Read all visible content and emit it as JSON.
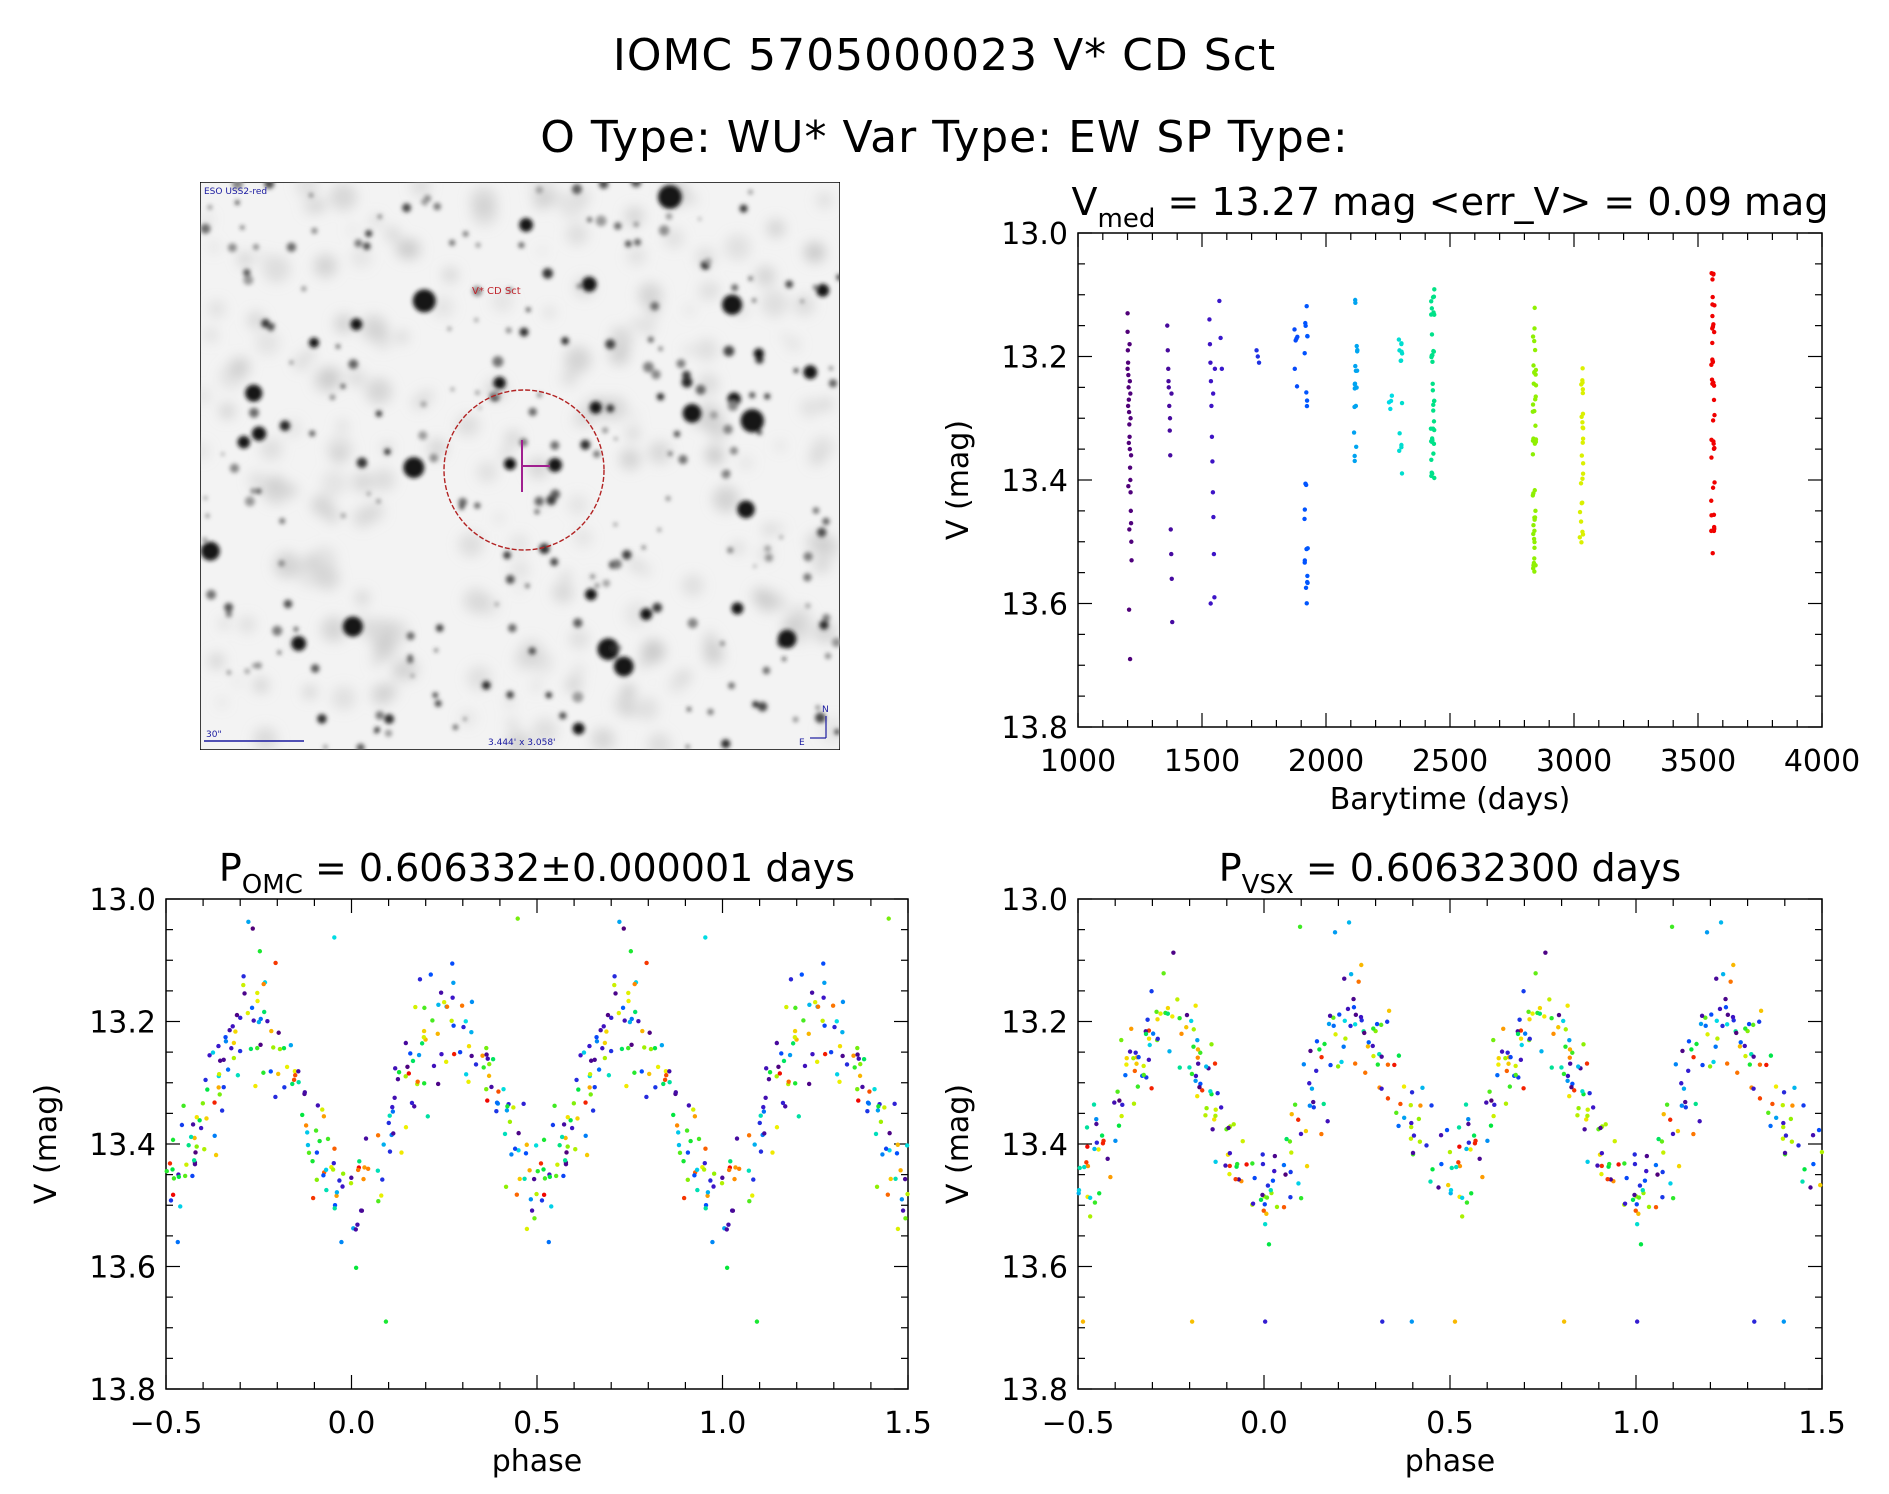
{
  "figure": {
    "title_line1": "IOMC 5705000023   V* CD Sct",
    "title_line2": "O Type: WU*  Var Type: EW  SP Type:"
  },
  "sky_image": {
    "survey_label": "ESO USS2-red",
    "target_label": "V* CD Sct",
    "scale_label": "30\"",
    "fov_label": "3.444' x 3.058'",
    "north_label": "N",
    "east_label": "E",
    "colors": {
      "circle": "#b22222",
      "marker": "#a0208f",
      "labels": "#1a1aa0",
      "target_label": "#c0242c"
    }
  },
  "chart_data": [
    {
      "id": "timeseries",
      "type": "scatter",
      "title_main": "V",
      "title_sub": "med",
      "title_rest": " = 13.27 mag <err_V> = 0.09 mag",
      "xlabel": "Barytime (days)",
      "ylabel": "V (mag)",
      "xlim": [
        1000,
        4000
      ],
      "ylim": [
        13.8,
        13.0
      ],
      "xticks": [
        1000,
        1500,
        2000,
        2500,
        3000,
        3500,
        4000
      ],
      "xticklabels": [
        "1000",
        "1500",
        "2000",
        "2500",
        "3000",
        "3500",
        "4000"
      ],
      "yticks": [
        13.0,
        13.2,
        13.4,
        13.6,
        13.8
      ],
      "yticklabels": [
        "13.0",
        "13.2",
        "13.4",
        "13.6",
        "13.8"
      ],
      "grid": false,
      "color_scale": "time (purple to red)",
      "series": [
        {
          "x": [
            1200,
            1200,
            1201,
            1202,
            1203,
            1204,
            1205,
            1206,
            1207,
            1208,
            1209,
            1210,
            1211,
            1212,
            1213,
            1214,
            1215,
            1216,
            1200,
            1202,
            1205,
            1208,
            1211,
            1214,
            1203,
            1207,
            1212,
            1206,
            1210,
            1209
          ],
          "y": [
            13.13,
            13.16,
            13.19,
            13.21,
            13.23,
            13.25,
            13.27,
            13.29,
            13.31,
            13.33,
            13.35,
            13.38,
            13.4,
            13.42,
            13.45,
            13.47,
            13.5,
            13.53,
            13.22,
            13.28,
            13.34,
            13.18,
            13.26,
            13.36,
            13.41,
            13.48,
            13.3,
            13.61,
            13.69,
            13.24
          ]
        },
        {
          "x": [
            1360,
            1362,
            1364,
            1366,
            1368,
            1370,
            1372,
            1374,
            1376,
            1378,
            1380,
            1365,
            1371,
            1377
          ],
          "y": [
            13.15,
            13.19,
            13.22,
            13.25,
            13.28,
            13.32,
            13.36,
            13.48,
            13.52,
            13.56,
            13.63,
            13.24,
            13.3,
            13.26
          ]
        },
        {
          "x": [
            1530,
            1532,
            1534,
            1536,
            1538,
            1540,
            1542,
            1544,
            1546,
            1548,
            1550,
            1552,
            1570,
            1575,
            1580,
            1535,
            1545
          ],
          "y": [
            13.14,
            13.18,
            13.21,
            13.24,
            13.28,
            13.33,
            13.37,
            13.42,
            13.46,
            13.52,
            13.59,
            13.22,
            13.11,
            13.17,
            13.22,
            13.6,
            13.26
          ]
        },
        {
          "x": [
            1720,
            1725,
            1730
          ],
          "y": [
            13.19,
            13.2,
            13.21
          ]
        }
      ]
    },
    {
      "id": "phase_omc",
      "type": "scatter",
      "title_main": "P",
      "title_sub": "OMC",
      "title_rest": " = 0.606332±0.000001 days",
      "xlabel": "phase",
      "ylabel": "V (mag)",
      "xlim": [
        -0.5,
        1.5
      ],
      "ylim": [
        13.8,
        13.0
      ],
      "xticks": [
        -0.5,
        0.0,
        0.5,
        1.0,
        1.5
      ],
      "xticklabels": [
        "−0.5",
        "0.0",
        "0.5",
        "1.0",
        "1.5"
      ],
      "yticks": [
        13.0,
        13.2,
        13.4,
        13.6,
        13.8
      ],
      "yticklabels": [
        "13.0",
        "13.2",
        "13.4",
        "13.6",
        "13.8"
      ],
      "grid": false,
      "light_curve": {
        "mean": 13.33,
        "amplitude": 0.14,
        "phase_of_primary_minimum": 0.0
      }
    },
    {
      "id": "phase_vsx",
      "type": "scatter",
      "title_main": "P",
      "title_sub": "VSX",
      "title_rest": " = 0.60632300 days",
      "xlabel": "phase",
      "ylabel": "V (mag)",
      "xlim": [
        -0.5,
        1.5
      ],
      "ylim": [
        13.8,
        13.0
      ],
      "xticks": [
        -0.5,
        0.0,
        0.5,
        1.0,
        1.5
      ],
      "xticklabels": [
        "−0.5",
        "0.0",
        "0.5",
        "1.0",
        "1.5"
      ],
      "yticks": [
        13.0,
        13.2,
        13.4,
        13.6,
        13.8
      ],
      "yticklabels": [
        "13.0",
        "13.2",
        "13.4",
        "13.6",
        "13.8"
      ],
      "grid": false,
      "light_curve": {
        "mean": 13.33,
        "amplitude": 0.14,
        "phase_of_primary_minimum": 0.0
      }
    }
  ]
}
